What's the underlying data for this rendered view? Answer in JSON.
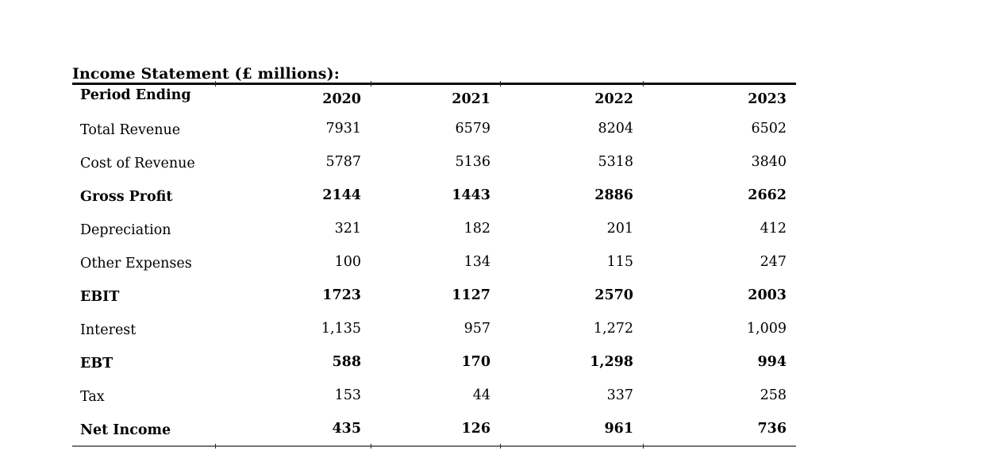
{
  "title": "Income Statement (£ millions):",
  "table": {
    "header": {
      "label": "Period Ending",
      "years": [
        "2020",
        "2021",
        "2022",
        "2023"
      ]
    },
    "rows": [
      {
        "label": "Total Revenue",
        "bold": false,
        "values": [
          "7931",
          "6579",
          "8204",
          "6502"
        ]
      },
      {
        "label": "Cost of Revenue",
        "bold": false,
        "values": [
          "5787",
          "5136",
          "5318",
          "3840"
        ]
      },
      {
        "label": "Gross Profit",
        "bold": true,
        "values": [
          "2144",
          "1443",
          "2886",
          "2662"
        ]
      },
      {
        "label": "Depreciation",
        "bold": false,
        "values": [
          "321",
          "182",
          "201",
          "412"
        ]
      },
      {
        "label": "Other Expenses",
        "bold": false,
        "values": [
          "100",
          "134",
          "115",
          "247"
        ]
      },
      {
        "label": "EBIT",
        "bold": true,
        "values": [
          "1723",
          "1127",
          "2570",
          "2003"
        ]
      },
      {
        "label": "Interest",
        "bold": false,
        "values": [
          "1,135",
          "957",
          "1,272",
          "1,009"
        ]
      },
      {
        "label": "EBT",
        "bold": true,
        "values": [
          "588",
          "170",
          "1,298",
          "994"
        ]
      },
      {
        "label": "Tax",
        "bold": false,
        "values": [
          "153",
          "44",
          "337",
          "258"
        ]
      },
      {
        "label": "Net Income",
        "bold": true,
        "values": [
          "435",
          "126",
          "961",
          "736"
        ]
      }
    ]
  },
  "colors": {
    "text": "#000000",
    "top_rule": "#0a0a0a",
    "bottom_rule": "#757575",
    "background": "#ffffff"
  }
}
